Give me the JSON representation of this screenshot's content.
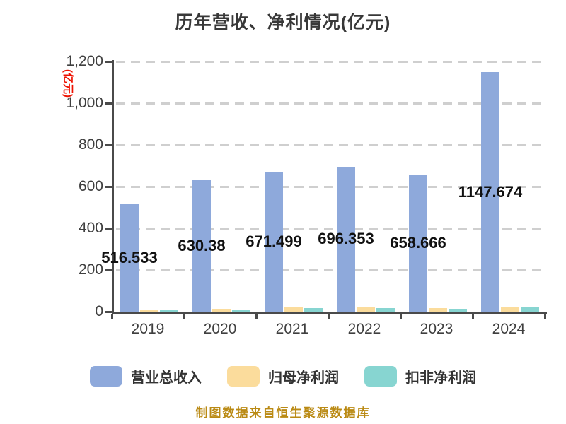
{
  "title": "历年营收、净利情况(亿元)",
  "y_axis_unit": "(亿元)",
  "footer": "制图数据来自恒生聚源数据库",
  "colors": {
    "revenue_bar": "#8EA9DB",
    "net_profit_bar": "#FBDC9C",
    "deducted_profit_bar": "#87D5D1",
    "grid_line": "#CFCFCF",
    "axis": "#4A4A4A",
    "y_unit_red": "#EE1100",
    "footer_gold": "#BA8A14",
    "value_label": "#111111"
  },
  "chart_data": {
    "type": "bar",
    "categories": [
      "2019",
      "2020",
      "2021",
      "2022",
      "2023",
      "2024"
    ],
    "series": [
      {
        "key": "revenue",
        "name": "营业总收入",
        "color": "#8EA9DB",
        "values": [
          516.533,
          630.38,
          671.499,
          696.353,
          658.666,
          1147.674
        ]
      },
      {
        "key": "net-profit",
        "name": "归母净利润",
        "color": "#FBDC9C",
        "values": [
          9.3,
          14.7,
          20.0,
          20.8,
          17.8,
          23.6
        ]
      },
      {
        "key": "deducted-net-profit",
        "name": "扣非净利润",
        "color": "#87D5D1",
        "values": [
          7.9,
          11.7,
          18.0,
          17.5,
          12.6,
          19.4
        ]
      }
    ],
    "bar_labels": [
      "516.533",
      "630.38",
      "671.499",
      "696.353",
      "658.666",
      "1147.674"
    ],
    "title": "历年营收、净利情况(亿元)",
    "xlabel": "",
    "ylabel": "(亿元)",
    "ylim": [
      0,
      1200
    ],
    "yticks": [
      "0",
      "200",
      "400",
      "600",
      "800",
      "1,000",
      "1,200"
    ],
    "grid": true,
    "grid_style": "dashed",
    "legend_position": "bottom"
  }
}
